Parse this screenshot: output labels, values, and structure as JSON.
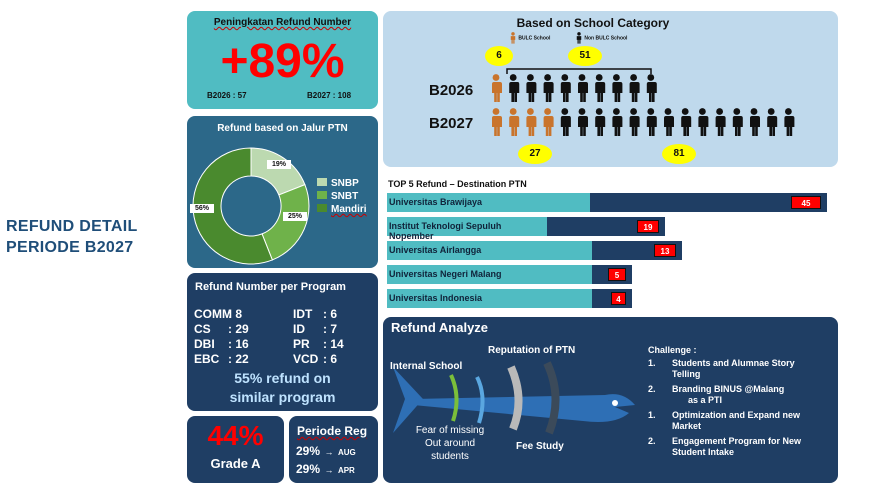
{
  "page": {
    "title_line1": "REFUND DETAIL",
    "title_line2": "PERIODE B2027"
  },
  "increase": {
    "title": "Peningkatan Refund Number",
    "value": "+89%",
    "left_label": "B2026 : 57",
    "right_label": "B2027 : 108"
  },
  "school": {
    "title": "Based on School Category",
    "legend_bulc": "BULC School",
    "legend_non": "Non BULC School",
    "top_bulc": "6",
    "top_non": "51",
    "row1_label": "B2026",
    "row2_label": "B2027",
    "bottom_bulc": "27",
    "bottom_non": "81",
    "colors": {
      "bulc": "#c9742c",
      "non": "#111111"
    }
  },
  "jalur": {
    "title": "Refund based on Jalur PTN",
    "legend": [
      "SNBP",
      "SNBT",
      "Mandiri"
    ],
    "labels": [
      "19%",
      "25%",
      "56%"
    ]
  },
  "chart_data": {
    "type": "pie",
    "title": "Refund based on Jalur PTN",
    "categories": [
      "SNBP",
      "SNBT",
      "Mandiri"
    ],
    "values": [
      19,
      25,
      56
    ],
    "colors": [
      "#bcd9b0",
      "#6fb24a",
      "#4a8a2e"
    ],
    "legend": "right"
  },
  "top5": {
    "title": "TOP 5 Refund – Destination PTN",
    "items": [
      {
        "name": "Universitas Brawijaya",
        "value": "45"
      },
      {
        "name": "Institut Teknologi Sepuluh Nopember",
        "value": "19"
      },
      {
        "name": "Universitas Airlangga",
        "value": "13"
      },
      {
        "name": "Universitas Negeri Malang",
        "value": "5"
      },
      {
        "name": "Universitas Indonesia",
        "value": "4"
      }
    ]
  },
  "program": {
    "title": "Refund Number per Program",
    "left": [
      {
        "code": "COMM",
        "value": ": 8"
      },
      {
        "code": "CS",
        "value": ": 29"
      },
      {
        "code": "DBI",
        "value": ": 16"
      },
      {
        "code": "EBC",
        "value": ": 22"
      }
    ],
    "right": [
      {
        "code": "IDT",
        "value": ": 6"
      },
      {
        "code": "ID",
        "value": ": 7"
      },
      {
        "code": "PR",
        "value": ": 14"
      },
      {
        "code": "VCD",
        "value": ": 6"
      }
    ],
    "summary_line1": "55% refund on",
    "summary_line2": "similar program"
  },
  "grade": {
    "value": "44%",
    "label": "Grade A"
  },
  "periode": {
    "title": "Periode Reg",
    "rows": [
      {
        "pct": "29%",
        "arrow": "→",
        "month": "AUG"
      },
      {
        "pct": "29%",
        "arrow": "→",
        "month": "APR"
      }
    ]
  },
  "analyze": {
    "title": "Refund Analyze",
    "internal": "Internal School",
    "reputation": "Reputation of PTN",
    "fear_line1": "Fear of missing",
    "fear_line2": "Out around",
    "fear_line3": "students",
    "fee": "Fee Study",
    "challenge_title": "Challenge :",
    "challenges": [
      {
        "num": "1.",
        "line1": "Students and Alumnae Story",
        "line2": "Telling"
      },
      {
        "num": "2.",
        "line1": "Branding BINUS @Malang",
        "line2": "as a PTI"
      },
      {
        "num": "1.",
        "line1": "Optimization and Expand new",
        "line2": "Market"
      },
      {
        "num": "2.",
        "line1": "Engagement Program for New",
        "line2": "Student Intake"
      }
    ]
  }
}
